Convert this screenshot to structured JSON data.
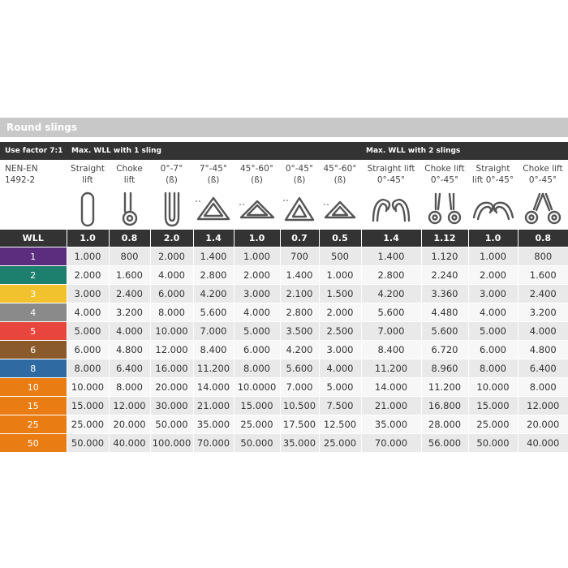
{
  "title": "Round slings",
  "header": {
    "use_factor": "Use factor 7:1",
    "one_sling": "Max. WLL with 1 sling",
    "two_slings": "Max. WLL with 2 slings"
  },
  "norm": [
    "NEN-EN",
    "1492-2"
  ],
  "columns": [
    {
      "l1": "Straight",
      "l2": "lift",
      "icon": "straight-lift-icon",
      "factor": "1.0"
    },
    {
      "l1": "Choke",
      "l2": "lift",
      "icon": "choke-lift-icon",
      "factor": "0.8"
    },
    {
      "l1": "0°-7°",
      "l2": "(ß)",
      "icon": "u-basket-icon",
      "factor": "2.0"
    },
    {
      "l1": "7°-45°",
      "l2": "(ß)",
      "icon": "basket-7-45-icon",
      "factor": "1.4"
    },
    {
      "l1": "45°-60°",
      "l2": "(ß)",
      "icon": "basket-45-60-icon",
      "factor": "1.0"
    },
    {
      "l1": "0°-45°",
      "l2": "(ß)",
      "icon": "triangle-0-45-icon",
      "factor": "0.7"
    },
    {
      "l1": "45°-60°",
      "l2": "(ß)",
      "icon": "triangle-45-60-icon",
      "factor": "0.5"
    },
    {
      "l1": "Straight lift",
      "l2": "0°-45°",
      "icon": "two-slings-straight-icon",
      "factor": "1.4"
    },
    {
      "l1": "Choke lift",
      "l2": "0°-45°",
      "icon": "two-slings-choke-icon",
      "factor": "1.12"
    },
    {
      "l1": "Straight",
      "l2": "lift 0°-45°",
      "icon": "two-slings-straight-wide-icon",
      "factor": "1.0"
    },
    {
      "l1": "Choke lift",
      "l2": "0°-45°",
      "icon": "two-slings-choke-wide-icon",
      "factor": "0.8"
    }
  ],
  "wll_label": "WLL",
  "rows": [
    {
      "wll": "1",
      "color": "#5c2d7e",
      "values": [
        "1.000",
        "800",
        "2.000",
        "1.400",
        "1.000",
        "700",
        "500",
        "1.400",
        "1.120",
        "1.000",
        "800"
      ]
    },
    {
      "wll": "2",
      "color": "#1d7f6e",
      "values": [
        "2.000",
        "1.600",
        "4.000",
        "2.800",
        "2.000",
        "1.400",
        "1.000",
        "2.800",
        "2.240",
        "2.000",
        "1.600"
      ]
    },
    {
      "wll": "3",
      "color": "#f2c12e",
      "values": [
        "3.000",
        "2.400",
        "6.000",
        "4.200",
        "3.000",
        "2.100",
        "1.500",
        "4.200",
        "3.360",
        "3.000",
        "2.400"
      ]
    },
    {
      "wll": "4",
      "color": "#8a8a8a",
      "values": [
        "4.000",
        "3.200",
        "8.000",
        "5.600",
        "4.000",
        "2.800",
        "2.000",
        "5.600",
        "4.480",
        "4.000",
        "3.200"
      ]
    },
    {
      "wll": "5",
      "color": "#e8463c",
      "values": [
        "5.000",
        "4.000",
        "10.000",
        "7.000",
        "5.000",
        "3.500",
        "2.500",
        "7.000",
        "5.600",
        "5.000",
        "4.000"
      ]
    },
    {
      "wll": "6",
      "color": "#8b5a2b",
      "values": [
        "6.000",
        "4.800",
        "12.000",
        "8.400",
        "6.000",
        "4.200",
        "3.000",
        "8.400",
        "6.720",
        "6.000",
        "4.800"
      ]
    },
    {
      "wll": "8",
      "color": "#2f6aa3",
      "values": [
        "8.000",
        "6.400",
        "16.000",
        "11.200",
        "8.000",
        "5.600",
        "4.000",
        "11.200",
        "8.960",
        "8.000",
        "6.400"
      ]
    },
    {
      "wll": "10",
      "color": "#e97c12",
      "values": [
        "10.000",
        "8.000",
        "20.000",
        "14.000",
        "10.0000",
        "7.000",
        "5.000",
        "14.000",
        "11.200",
        "10.000",
        "8.000"
      ]
    },
    {
      "wll": "15",
      "color": "#e97c12",
      "values": [
        "15.000",
        "12.000",
        "30.000",
        "21.000",
        "15.000",
        "10.500",
        "7.500",
        "21.000",
        "16.800",
        "15.000",
        "12.000"
      ]
    },
    {
      "wll": "25",
      "color": "#e97c12",
      "values": [
        "25.000",
        "20.000",
        "50.000",
        "35.000",
        "25.000",
        "17.500",
        "12.500",
        "35.000",
        "28.000",
        "25.000",
        "20.000"
      ]
    },
    {
      "wll": "50",
      "color": "#e97c12",
      "values": [
        "50.000",
        "40.000",
        "100.000",
        "70.000",
        "50.000",
        "35.000",
        "25.000",
        "70.000",
        "56.000",
        "50.000",
        "40.000"
      ]
    }
  ]
}
